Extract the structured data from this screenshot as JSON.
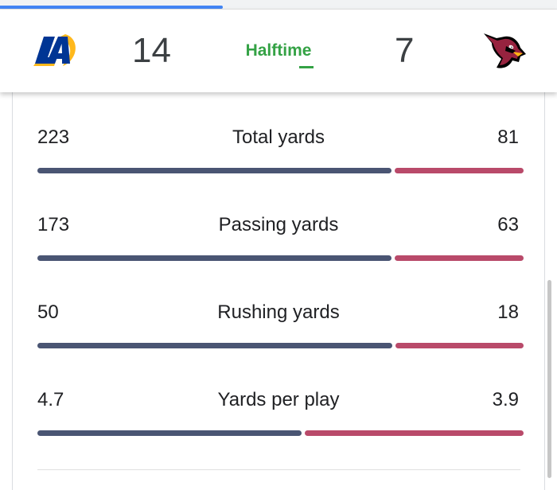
{
  "colors": {
    "home_bar": "#4a5573",
    "away_bar": "#b94a6a",
    "status": "#34a245",
    "progress": "#4285f4"
  },
  "progress": {
    "fraction": 0.4
  },
  "game": {
    "home": {
      "icon": "los-angeles-rams-logo",
      "score": "14"
    },
    "status": "Halftime",
    "away": {
      "icon": "arizona-cardinals-logo",
      "score": "7"
    }
  },
  "stats": [
    {
      "label": "Total yards",
      "home": "223",
      "away": "81"
    },
    {
      "label": "Passing yards",
      "home": "173",
      "away": "63"
    },
    {
      "label": "Rushing yards",
      "home": "50",
      "away": "18"
    },
    {
      "label": "Yards per play",
      "home": "4.7",
      "away": "3.9"
    }
  ]
}
